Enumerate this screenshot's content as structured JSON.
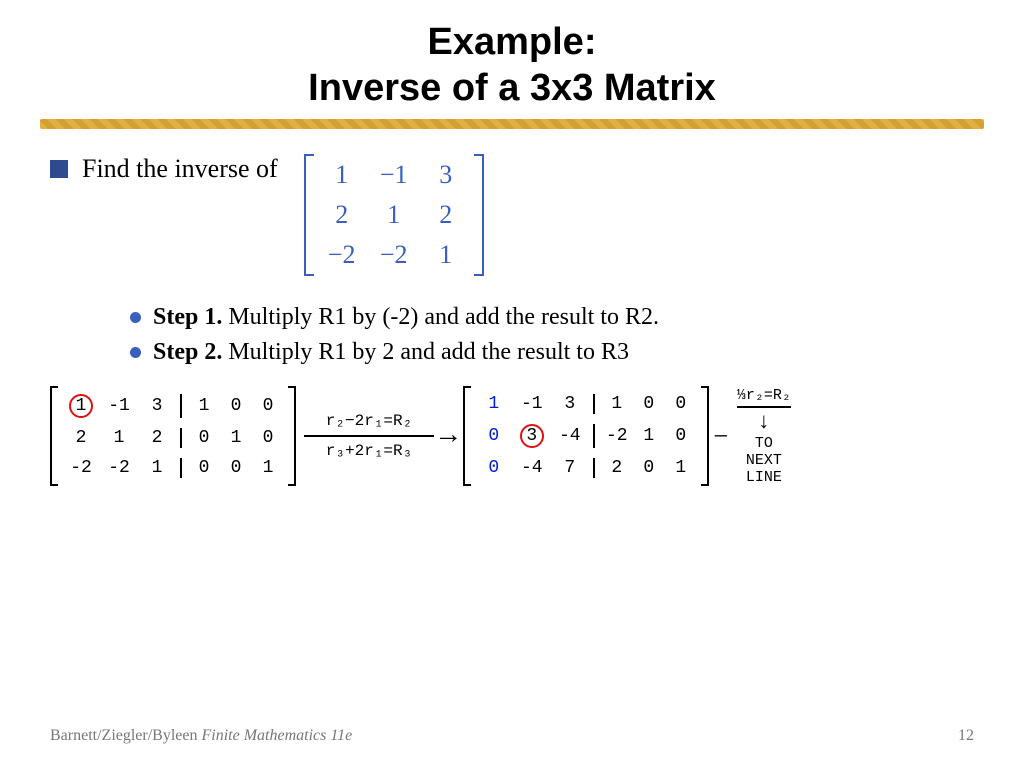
{
  "title_line1": "Example:",
  "title_line2": "Inverse of a 3x3 Matrix",
  "intro": "Find the inverse of",
  "matrix": {
    "rows": [
      [
        "1",
        "−1",
        "3"
      ],
      [
        "2",
        "1",
        "2"
      ],
      [
        "−2",
        "−2",
        "1"
      ]
    ],
    "bracket_color": "#3a5fbf",
    "text_color": "#3a5fbf",
    "fontsize": 26
  },
  "steps": {
    "bullet_color": "#3a5fbf",
    "items": [
      {
        "label": "Step 1.",
        "text": " Multiply R1 by (-2) and add the result to R2."
      },
      {
        "label": "Step 2.",
        "text": " Multiply R1 by 2 and add the result to R3"
      }
    ]
  },
  "aug_left": {
    "left_rows": [
      [
        "1",
        "-1",
        "3"
      ],
      [
        "2",
        "1",
        "2"
      ],
      [
        "-2",
        "-2",
        "1"
      ]
    ],
    "right_rows": [
      [
        "1",
        "0",
        "0"
      ],
      [
        "0",
        "1",
        "0"
      ],
      [
        "0",
        "0",
        "1"
      ]
    ],
    "circled": [
      0,
      0
    ]
  },
  "operations": {
    "top": "r₂−2r₁=R₂",
    "bottom": "r₃+2r₁=R₃"
  },
  "aug_right": {
    "left_rows": [
      [
        "1",
        "-1",
        "3"
      ],
      [
        "0",
        "3",
        "-4"
      ],
      [
        "0",
        "-4",
        "7"
      ]
    ],
    "right_rows": [
      [
        "1",
        "0",
        "0"
      ],
      [
        "-2",
        "1",
        "0"
      ],
      [
        "2",
        "0",
        "1"
      ]
    ],
    "blue_col": 0,
    "circled": [
      1,
      1
    ]
  },
  "tail": {
    "op": "⅓r₂=R₂",
    "note1": "TO",
    "note2": "NEXT",
    "note3": "LINE"
  },
  "footer": {
    "left_plain": "Barnett/Ziegler/Byleen ",
    "left_ital": "Finite Mathematics 11e",
    "page": "12"
  },
  "colors": {
    "title": "#000000",
    "underline_a": "#e0b040",
    "underline_b": "#d4a030",
    "square_bullet": "#2e4b8f",
    "circle_ring": "#e01010",
    "blue_digit": "#0020d0",
    "footer_text": "#777777"
  }
}
